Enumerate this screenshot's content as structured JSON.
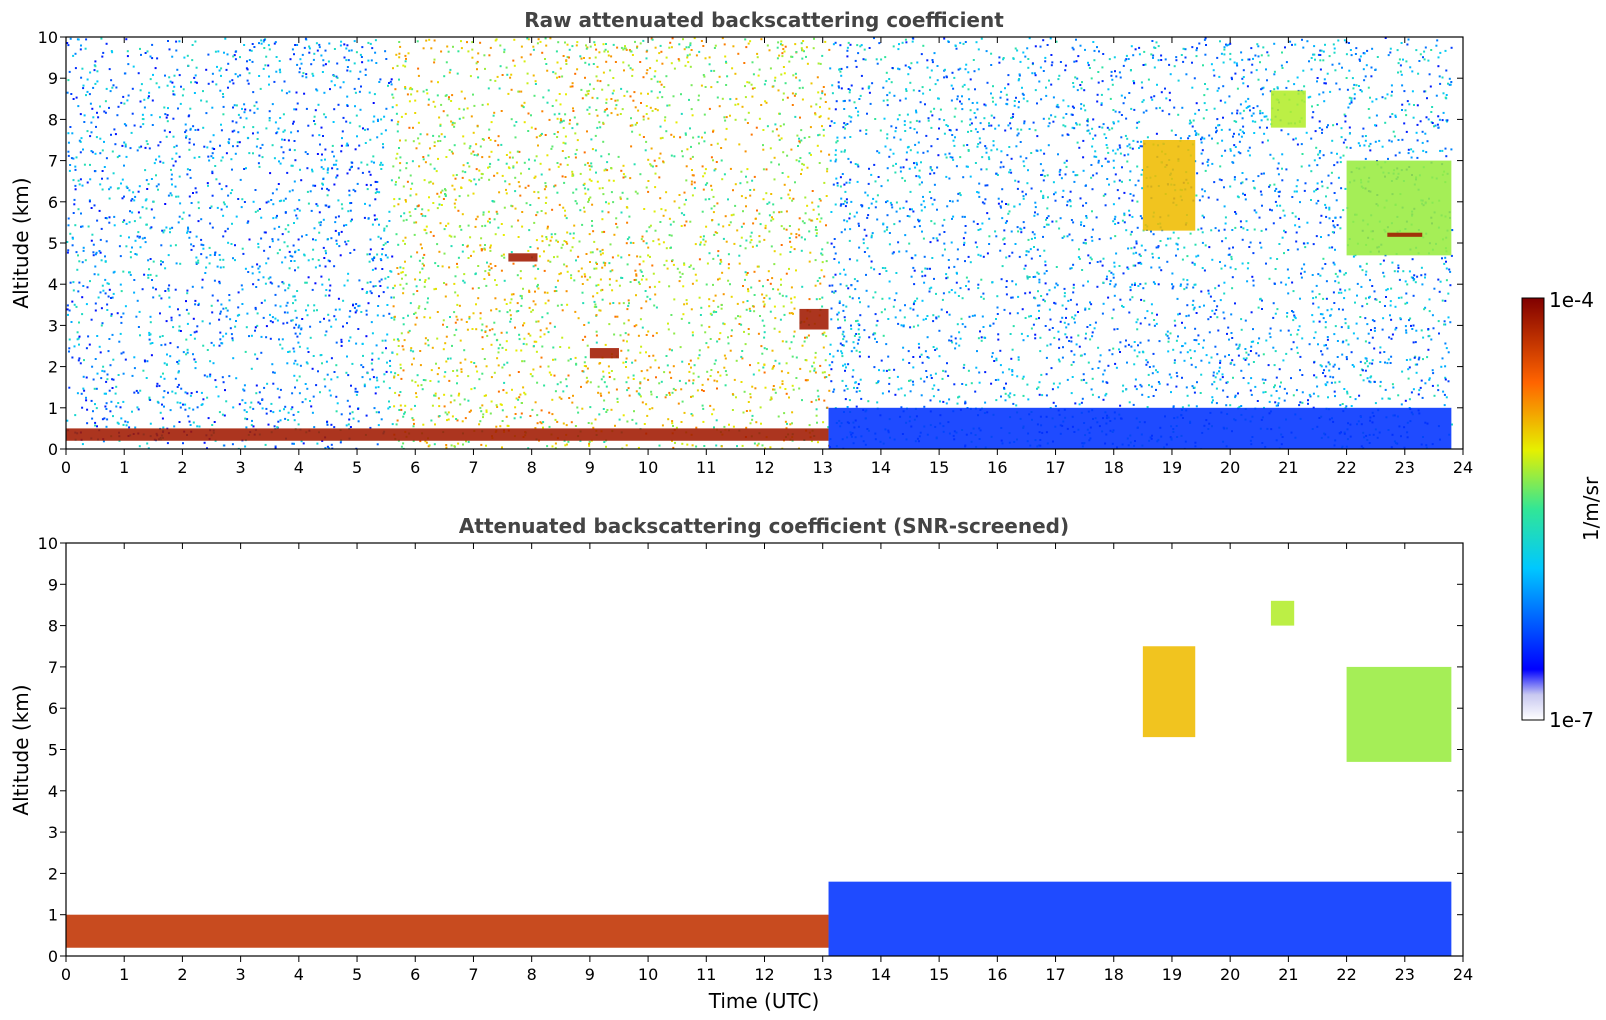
{
  "chart_data": [
    {
      "type": "heatmap",
      "title": "Raw attenuated backscattering coefficient",
      "xlabel": "",
      "ylabel": "Altitude (km)",
      "xlim": [
        0,
        24
      ],
      "ylim": [
        0,
        10
      ],
      "xticks": [
        "0",
        "1",
        "2",
        "3",
        "4",
        "5",
        "6",
        "7",
        "8",
        "9",
        "10",
        "11",
        "12",
        "13",
        "14",
        "15",
        "16",
        "17",
        "18",
        "19",
        "20",
        "21",
        "22",
        "23",
        "24"
      ],
      "yticks": [
        "0",
        "1",
        "2",
        "3",
        "4",
        "5",
        "6",
        "7",
        "8",
        "9",
        "10"
      ],
      "background_noise_regions": [
        {
          "x": [
            0,
            5.6
          ],
          "level": 0.3
        },
        {
          "x": [
            5.6,
            13.1
          ],
          "level": 0.62
        },
        {
          "x": [
            13.1,
            23.8
          ],
          "level": 0.32
        }
      ],
      "features": [
        {
          "label": "boundary layer",
          "x": [
            0,
            13.1
          ],
          "y": [
            0.2,
            0.5
          ],
          "level": 0.95
        },
        {
          "label": "lower aerosol",
          "x": [
            13.1,
            23.8
          ],
          "y": [
            0,
            1.0
          ],
          "level": 0.18
        },
        {
          "label": "cloud",
          "x": [
            18.5,
            19.4
          ],
          "y": [
            5.3,
            7.5
          ],
          "level": 0.7
        },
        {
          "label": "cloud",
          "x": [
            22.0,
            23.8
          ],
          "y": [
            4.7,
            7.0
          ],
          "level": 0.58
        },
        {
          "label": "cloud",
          "x": [
            20.7,
            21.3
          ],
          "y": [
            7.8,
            8.7
          ],
          "level": 0.6
        },
        {
          "label": "cloud",
          "x": [
            7.6,
            8.1
          ],
          "y": [
            4.55,
            4.75
          ],
          "level": 0.95
        },
        {
          "label": "cloud",
          "x": [
            9.0,
            9.5
          ],
          "y": [
            2.2,
            2.45
          ],
          "level": 0.95
        },
        {
          "label": "cloud",
          "x": [
            12.6,
            13.1
          ],
          "y": [
            2.9,
            3.4
          ],
          "level": 0.95
        },
        {
          "label": "cloud",
          "x": [
            22.7,
            23.3
          ],
          "y": [
            5.15,
            5.25
          ],
          "level": 0.95
        }
      ]
    },
    {
      "type": "heatmap",
      "title": "Attenuated backscattering coefficient (SNR-screened)",
      "xlabel": "Time (UTC)",
      "ylabel": "Altitude (km)",
      "xlim": [
        0,
        24
      ],
      "ylim": [
        0,
        10
      ],
      "xticks": [
        "0",
        "1",
        "2",
        "3",
        "4",
        "5",
        "6",
        "7",
        "8",
        "9",
        "10",
        "11",
        "12",
        "13",
        "14",
        "15",
        "16",
        "17",
        "18",
        "19",
        "20",
        "21",
        "22",
        "23",
        "24"
      ],
      "yticks": [
        "0",
        "1",
        "2",
        "3",
        "4",
        "5",
        "6",
        "7",
        "8",
        "9",
        "10"
      ],
      "features": [
        {
          "label": "boundary layer",
          "x": [
            0,
            13.1
          ],
          "y": [
            0.2,
            1.0
          ],
          "level": 0.9
        },
        {
          "label": "lower aerosol",
          "x": [
            13.1,
            23.8
          ],
          "y": [
            0,
            1.8
          ],
          "level": 0.18
        },
        {
          "label": "cloud",
          "x": [
            18.5,
            19.4
          ],
          "y": [
            5.3,
            7.5
          ],
          "level": 0.7
        },
        {
          "label": "cloud",
          "x": [
            22.0,
            23.8
          ],
          "y": [
            4.7,
            7.0
          ],
          "level": 0.58
        },
        {
          "label": "cloud",
          "x": [
            20.7,
            21.1
          ],
          "y": [
            8.0,
            8.6
          ],
          "level": 0.6
        }
      ]
    }
  ],
  "colorbar": {
    "label": "1/m/sr",
    "max_label": "1e-4",
    "min_label": "1e-7",
    "scale": "log",
    "colormap": "jet"
  }
}
